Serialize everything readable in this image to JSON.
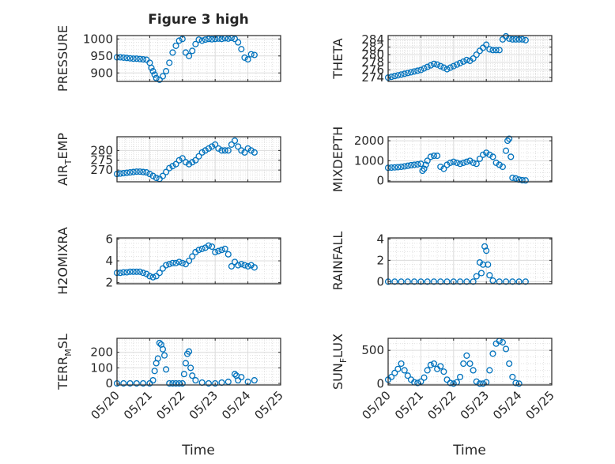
{
  "figure": {
    "title": "Figure 3 high",
    "x_axis_label": "Time",
    "x_tick_labels": [
      "05/20",
      "05/21",
      "05/22",
      "05/23",
      "05/24",
      "05/25"
    ],
    "marker": "circle",
    "series_color": "#0072BD"
  },
  "chart_data": [
    {
      "type": "scatter",
      "ylabel": "PRESSURE",
      "xlim": [
        0,
        5
      ],
      "ylim": [
        875,
        1010
      ],
      "yticks": [
        900,
        950,
        1000
      ],
      "x": [
        0,
        0.1,
        0.2,
        0.3,
        0.4,
        0.5,
        0.6,
        0.7,
        0.8,
        0.9,
        1,
        1.05,
        1.1,
        1.15,
        1.2,
        1.3,
        1.4,
        1.5,
        1.6,
        1.7,
        1.8,
        1.9,
        2,
        2.1,
        2.2,
        2.3,
        2.4,
        2.5,
        2.6,
        2.7,
        2.8,
        2.9,
        3,
        3.1,
        3.2,
        3.3,
        3.4,
        3.5,
        3.6,
        3.7,
        3.8,
        3.9,
        4,
        4.1,
        4.2
      ],
      "y": [
        946,
        946,
        945,
        944,
        943,
        942,
        942,
        941,
        940,
        939,
        930,
        915,
        905,
        895,
        885,
        880,
        890,
        905,
        930,
        960,
        980,
        995,
        1000,
        960,
        950,
        965,
        985,
        998,
        995,
        998,
        1000,
        999,
        1000,
        1001,
        1000,
        1002,
        1001,
        1003,
        1000,
        990,
        970,
        945,
        940,
        955,
        953
      ]
    },
    {
      "type": "scatter",
      "ylabel": "THETA",
      "xlim": [
        0,
        5
      ],
      "ylim": [
        273,
        285
      ],
      "yticks": [
        274,
        276,
        278,
        280,
        282,
        284
      ],
      "x": [
        0,
        0.1,
        0.2,
        0.3,
        0.4,
        0.5,
        0.6,
        0.7,
        0.8,
        0.9,
        1,
        1.1,
        1.2,
        1.3,
        1.4,
        1.5,
        1.6,
        1.7,
        1.8,
        1.9,
        2,
        2.1,
        2.2,
        2.3,
        2.4,
        2.5,
        2.6,
        2.7,
        2.8,
        2.9,
        3,
        3.1,
        3.2,
        3.3,
        3.4,
        3.5,
        3.6,
        3.7,
        3.8,
        3.9,
        4,
        4.1,
        4.2
      ],
      "y": [
        274,
        274.2,
        274.4,
        274.6,
        274.8,
        275,
        275.2,
        275.4,
        275.6,
        275.8,
        276,
        276.4,
        276.8,
        277.2,
        277.6,
        277.4,
        277,
        276.6,
        276.2,
        276.6,
        277,
        277.4,
        277.8,
        278.2,
        278.6,
        278.4,
        279,
        280,
        281,
        281.8,
        282.6,
        281.4,
        281.2,
        281.2,
        281.2,
        284,
        284.8,
        284.2,
        284,
        284,
        284,
        284,
        283.8
      ]
    },
    {
      "type": "scatter",
      "ylabel": "AIR_TEMP",
      "xlim": [
        0,
        5
      ],
      "ylim": [
        264,
        287
      ],
      "yticks": [
        270,
        275,
        280
      ],
      "x": [
        0,
        0.1,
        0.2,
        0.3,
        0.4,
        0.5,
        0.6,
        0.7,
        0.8,
        0.9,
        1,
        1.1,
        1.2,
        1.3,
        1.4,
        1.5,
        1.6,
        1.7,
        1.8,
        1.9,
        2,
        2.1,
        2.2,
        2.3,
        2.4,
        2.5,
        2.6,
        2.7,
        2.8,
        2.9,
        3,
        3.1,
        3.2,
        3.3,
        3.4,
        3.5,
        3.6,
        3.7,
        3.8,
        3.9,
        4,
        4.1,
        4.2
      ],
      "y": [
        268,
        268.2,
        268.4,
        268.6,
        268.8,
        269,
        269.2,
        269.2,
        269,
        268.8,
        268,
        267,
        266,
        265.5,
        267,
        269,
        271,
        272,
        273,
        275,
        276,
        274,
        273,
        274,
        275,
        277,
        279,
        280,
        281,
        282,
        283,
        281,
        280,
        280,
        280,
        283,
        285,
        282,
        280,
        279,
        281,
        280,
        279
      ]
    },
    {
      "type": "scatter",
      "ylabel": "MIXDEPTH",
      "xlim": [
        0,
        5
      ],
      "ylim": [
        -50,
        2200
      ],
      "yticks": [
        0,
        1000,
        2000
      ],
      "x": [
        0,
        0.1,
        0.2,
        0.3,
        0.4,
        0.5,
        0.6,
        0.7,
        0.8,
        0.9,
        1,
        1.05,
        1.1,
        1.15,
        1.2,
        1.3,
        1.4,
        1.5,
        1.6,
        1.7,
        1.8,
        1.9,
        2,
        2.1,
        2.2,
        2.3,
        2.4,
        2.5,
        2.6,
        2.7,
        2.8,
        2.9,
        3,
        3.1,
        3.2,
        3.3,
        3.4,
        3.5,
        3.6,
        3.65,
        3.7,
        3.75,
        3.8,
        3.9,
        4,
        4.1,
        4.2
      ],
      "y": [
        650,
        660,
        670,
        680,
        700,
        720,
        750,
        780,
        800,
        820,
        850,
        500,
        600,
        800,
        1000,
        1200,
        1250,
        1250,
        700,
        600,
        800,
        900,
        950,
        900,
        850,
        900,
        950,
        1000,
        900,
        850,
        1100,
        1300,
        1400,
        1300,
        1200,
        900,
        800,
        700,
        1500,
        2000,
        2100,
        1200,
        150,
        120,
        60,
        30,
        20
      ]
    },
    {
      "type": "scatter",
      "ylabel": "H2OMIXRA",
      "xlim": [
        0,
        5
      ],
      "ylim": [
        1.9,
        6.1
      ],
      "yticks": [
        2,
        4,
        6
      ],
      "x": [
        0,
        0.1,
        0.2,
        0.3,
        0.4,
        0.5,
        0.6,
        0.7,
        0.8,
        0.9,
        1,
        1.1,
        1.2,
        1.3,
        1.4,
        1.5,
        1.6,
        1.7,
        1.8,
        1.9,
        2,
        2.1,
        2.2,
        2.3,
        2.4,
        2.5,
        2.6,
        2.7,
        2.8,
        2.9,
        3,
        3.1,
        3.2,
        3.3,
        3.4,
        3.5,
        3.6,
        3.7,
        3.8,
        3.9,
        4,
        4.1,
        4.2
      ],
      "y": [
        2.9,
        2.9,
        2.95,
        2.95,
        3,
        3,
        3,
        3,
        2.9,
        2.8,
        2.6,
        2.5,
        2.6,
        2.9,
        3.3,
        3.6,
        3.7,
        3.8,
        3.8,
        3.9,
        3.8,
        3.7,
        4,
        4.4,
        4.8,
        5,
        5.1,
        5.2,
        5.4,
        5.3,
        4.8,
        4.9,
        5,
        5.1,
        4.6,
        3.5,
        3.9,
        3.6,
        3.7,
        3.6,
        3.5,
        3.6,
        3.4
      ]
    },
    {
      "type": "scatter",
      "ylabel": "RAINFALL",
      "xlim": [
        0,
        5
      ],
      "ylim": [
        -0.2,
        4.1
      ],
      "yticks": [
        0,
        2,
        4
      ],
      "x": [
        0,
        0.2,
        0.4,
        0.6,
        0.8,
        1,
        1.2,
        1.4,
        1.6,
        1.8,
        2,
        2.2,
        2.4,
        2.6,
        2.7,
        2.8,
        2.85,
        2.9,
        2.95,
        3,
        3.05,
        3.1,
        3.2,
        3.4,
        3.6,
        3.8,
        4,
        4.2
      ],
      "y": [
        0,
        0,
        0,
        0,
        0,
        0,
        0,
        0,
        0,
        0,
        0,
        0,
        0,
        0,
        0.5,
        1.8,
        0.8,
        1.6,
        3.3,
        2.9,
        1.6,
        0.6,
        0.1,
        0,
        0,
        0,
        0,
        0
      ]
    },
    {
      "type": "scatter",
      "ylabel": "TERR_MSL",
      "xlim": [
        0,
        5
      ],
      "ylim": [
        -10,
        290
      ],
      "yticks": [
        0,
        100,
        200
      ],
      "x": [
        0,
        0.2,
        0.4,
        0.6,
        0.8,
        1,
        1.1,
        1.15,
        1.2,
        1.25,
        1.3,
        1.35,
        1.4,
        1.45,
        1.5,
        1.6,
        1.7,
        1.8,
        1.9,
        2,
        2.05,
        2.1,
        2.15,
        2.2,
        2.25,
        2.3,
        2.4,
        2.6,
        2.8,
        3,
        3.2,
        3.4,
        3.6,
        3.65,
        3.7,
        3.8,
        4,
        4.2
      ],
      "y": [
        0,
        0,
        0,
        0,
        0,
        0,
        20,
        80,
        130,
        160,
        260,
        250,
        220,
        180,
        90,
        0,
        0,
        0,
        0,
        0,
        60,
        130,
        190,
        205,
        100,
        50,
        20,
        5,
        0,
        0,
        5,
        10,
        60,
        50,
        20,
        40,
        10,
        20
      ]
    },
    {
      "type": "scatter",
      "ylabel": "SUN_FLUX",
      "xlim": [
        0,
        5
      ],
      "ylim": [
        -20,
        680
      ],
      "yticks": [
        0,
        500
      ],
      "x": [
        0,
        0.1,
        0.2,
        0.3,
        0.4,
        0.5,
        0.6,
        0.7,
        0.8,
        0.9,
        1,
        1.1,
        1.2,
        1.3,
        1.4,
        1.5,
        1.6,
        1.7,
        1.8,
        1.9,
        2,
        2.1,
        2.2,
        2.3,
        2.4,
        2.5,
        2.6,
        2.7,
        2.8,
        2.9,
        3,
        3.1,
        3.2,
        3.3,
        3.4,
        3.5,
        3.6,
        3.7,
        3.8,
        3.9,
        4
      ],
      "y": [
        60,
        100,
        160,
        220,
        300,
        200,
        120,
        60,
        20,
        10,
        30,
        90,
        200,
        280,
        300,
        220,
        260,
        180,
        60,
        10,
        0,
        20,
        100,
        300,
        420,
        300,
        200,
        30,
        0,
        0,
        20,
        200,
        450,
        600,
        640,
        620,
        520,
        300,
        100,
        10,
        0
      ]
    }
  ]
}
